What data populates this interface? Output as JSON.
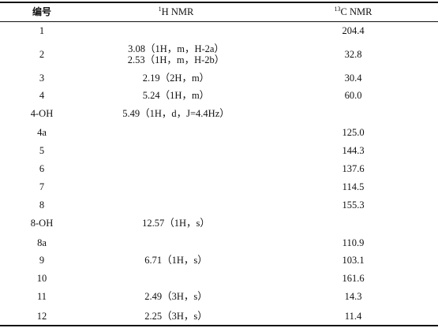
{
  "headers": {
    "no": "编号",
    "h_sup": "1",
    "h_text": "H NMR",
    "c_sup": "13",
    "c_text": "C NMR"
  },
  "rows": [
    {
      "no": "1",
      "h": [],
      "c": "204.4"
    },
    {
      "no": "2",
      "h": [
        "3.08（1H，m，H-2a）",
        "2.53（1H，m，H-2b）"
      ],
      "c": "32.8"
    },
    {
      "no": "3",
      "h": [
        "2.19（2H，m）"
      ],
      "c": "30.4"
    },
    {
      "no": "4",
      "h": [
        "5.24（1H，m）"
      ],
      "c": "60.0"
    },
    {
      "no": "4-OH",
      "h": [
        "5.49（1H，d，J=4.4Hz）"
      ],
      "c": ""
    },
    {
      "no": "4a",
      "h": [],
      "c": "125.0"
    },
    {
      "no": "5",
      "h": [],
      "c": "144.3"
    },
    {
      "no": "6",
      "h": [],
      "c": "137.6"
    },
    {
      "no": "7",
      "h": [],
      "c": "114.5"
    },
    {
      "no": "8",
      "h": [],
      "c": "155.3"
    },
    {
      "no": "8-OH",
      "h": [
        "12.57（1H，s）"
      ],
      "c": ""
    },
    {
      "no": "8a",
      "h": [],
      "c": "110.9"
    },
    {
      "no": "9",
      "h": [
        "6.71（1H，s）"
      ],
      "c": "103.1"
    },
    {
      "no": "10",
      "h": [],
      "c": "161.6"
    },
    {
      "no": "11",
      "h": [
        "2.49（3H，s）"
      ],
      "c": "14.3"
    },
    {
      "no": "12",
      "h": [
        "2.25（3H，s）"
      ],
      "c": "11.4"
    }
  ]
}
